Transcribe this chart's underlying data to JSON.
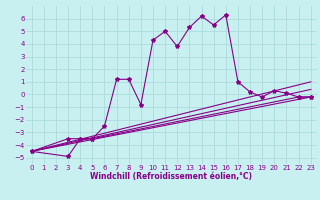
{
  "xlabel": "Windchill (Refroidissement éolien,°C)",
  "bg_color": "#c8f0f0",
  "grid_color": "#b0dede",
  "line_color": "#880088",
  "xlim": [
    -0.5,
    23.5
  ],
  "ylim": [
    -5.5,
    7.0
  ],
  "xticks": [
    0,
    1,
    2,
    3,
    4,
    5,
    6,
    7,
    8,
    9,
    10,
    11,
    12,
    13,
    14,
    15,
    16,
    17,
    18,
    19,
    20,
    21,
    22,
    23
  ],
  "yticks": [
    -5,
    -4,
    -3,
    -2,
    -1,
    0,
    1,
    2,
    3,
    4,
    5,
    6
  ],
  "curve_main_x": [
    0,
    3,
    4,
    5,
    6,
    7,
    8,
    9,
    10,
    11,
    12,
    13,
    14,
    15,
    16,
    17,
    18,
    19,
    20,
    21,
    22,
    23
  ],
  "curve_main_y": [
    -4.5,
    -3.5,
    -3.5,
    -3.5,
    -2.5,
    1.2,
    1.2,
    -0.8,
    4.3,
    5.0,
    3.8,
    5.3,
    6.2,
    5.5,
    6.3,
    1.0,
    0.2,
    -0.2,
    0.3,
    0.1,
    -0.2,
    -0.2
  ],
  "curve2_x": [
    0,
    3,
    4,
    5,
    22,
    23
  ],
  "curve2_y": [
    -4.5,
    -4.9,
    -3.5,
    -3.5,
    -0.2,
    -0.2
  ],
  "line1_x": [
    0,
    23
  ],
  "line1_y": [
    -4.5,
    1.0
  ],
  "line2_x": [
    0,
    23
  ],
  "line2_y": [
    -4.5,
    -0.2
  ],
  "line3_x": [
    0,
    23
  ],
  "line3_y": [
    -4.5,
    0.4
  ],
  "xlabel_fontsize": 5.5,
  "tick_fontsize": 5.0
}
